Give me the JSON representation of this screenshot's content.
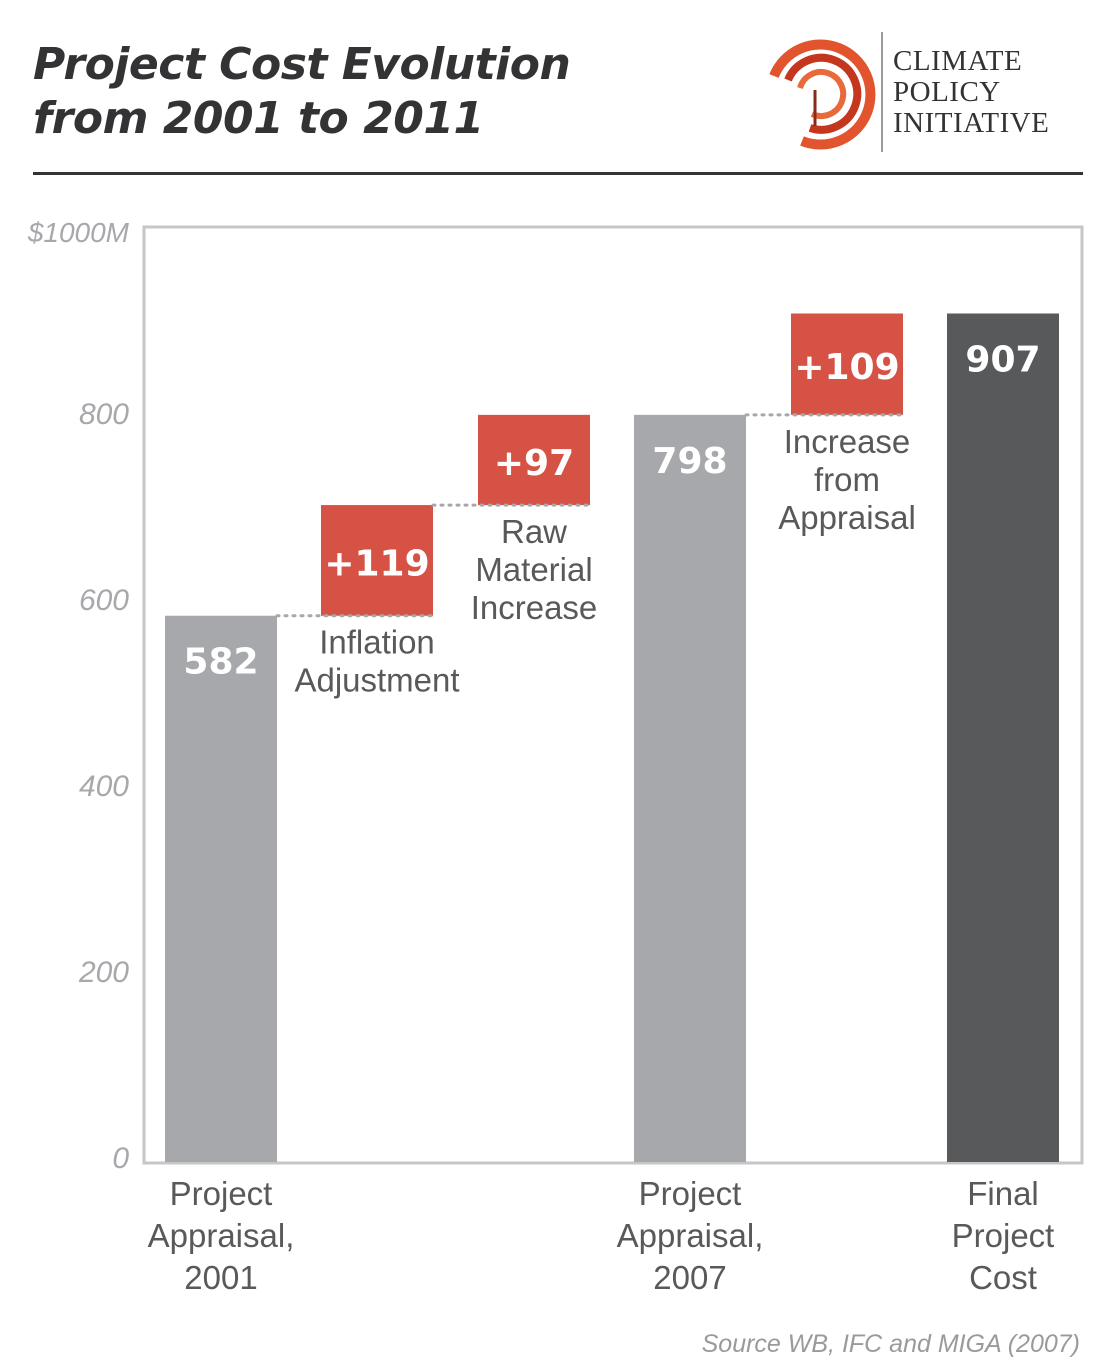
{
  "header": {
    "title_line1": "Project Cost Evolution",
    "title_line2": "from 2001 to 2011",
    "logo_lines": [
      "CLIMATE",
      "POLICY",
      "INITIATIVE"
    ]
  },
  "source": "Source WB, IFC and MIGA (2007)",
  "colors": {
    "bar_gray": "#a7a8ab",
    "bar_dark": "#58595b",
    "increase_red": "#d55244",
    "axis_gray": "#c6c6c6",
    "tick_text": "#a7a8ab",
    "label_text": "#58595b",
    "logo_orange": "#e1542d"
  },
  "chart_data": {
    "type": "bar",
    "subtype": "waterfall",
    "ylabel": "$1000M",
    "ylim": [
      0,
      1000
    ],
    "yticks": [
      0,
      200,
      400,
      600,
      800
    ],
    "ytick_labels": [
      "0",
      "200",
      "400",
      "600",
      "800"
    ],
    "grid": false,
    "steps": [
      {
        "kind": "total",
        "label_lines": [
          "Project",
          "Appraisal,",
          "2001"
        ],
        "start": 0,
        "value": 582,
        "display": "582",
        "color": "gray"
      },
      {
        "kind": "increase",
        "label_lines": [
          "Inflation",
          "Adjustment"
        ],
        "start": 582,
        "value": 119,
        "display": "+119",
        "color": "red"
      },
      {
        "kind": "increase",
        "label_lines": [
          "Raw",
          "Material",
          "Increase"
        ],
        "start": 701,
        "value": 97,
        "display": "+97",
        "color": "red"
      },
      {
        "kind": "total",
        "label_lines": [
          "Project",
          "Appraisal,",
          "2007"
        ],
        "start": 0,
        "value": 798,
        "display": "798",
        "color": "gray"
      },
      {
        "kind": "increase",
        "label_lines": [
          "Increase",
          "from",
          "Appraisal"
        ],
        "start": 798,
        "value": 109,
        "display": "+109",
        "color": "red"
      },
      {
        "kind": "total",
        "label_lines": [
          "Final",
          "Project",
          "Cost"
        ],
        "start": 0,
        "value": 907,
        "display": "907",
        "color": "dark"
      }
    ]
  }
}
